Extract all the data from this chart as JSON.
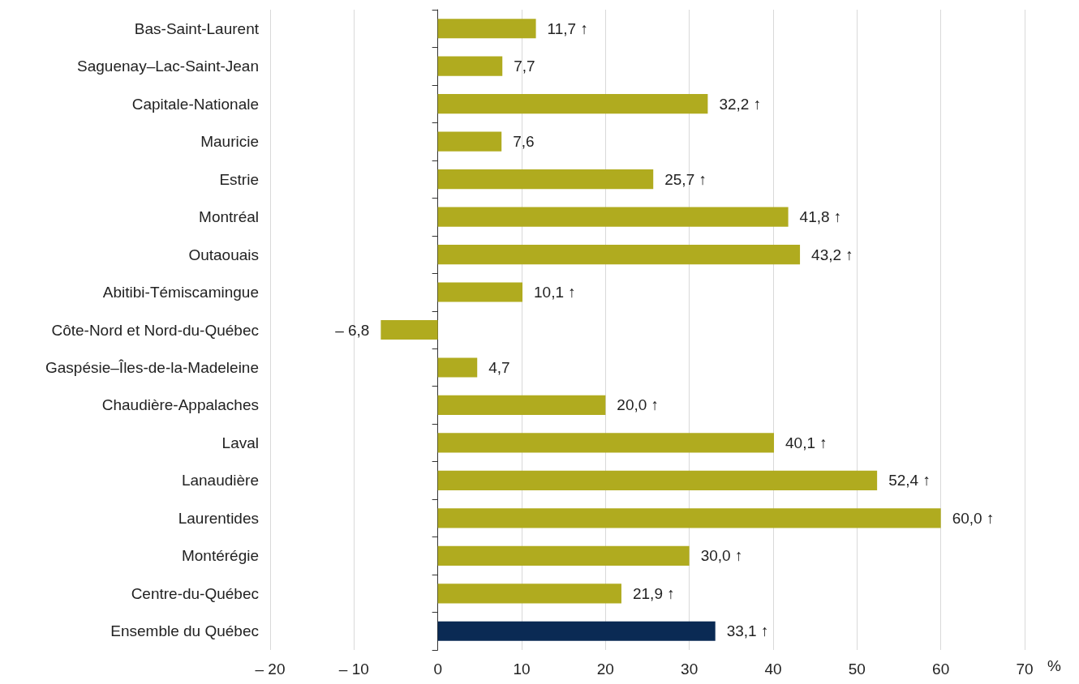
{
  "chart_data": {
    "type": "bar",
    "orientation": "horizontal",
    "xlabel": "%",
    "categories": [
      "Bas-Saint-Laurent",
      "Saguenay–Lac-Saint-Jean",
      "Capitale-Nationale",
      "Mauricie",
      "Estrie",
      "Montréal",
      "Outaouais",
      "Abitibi-Témiscamingue",
      "Côte-Nord et Nord-du-Québec",
      "Gaspésie–Îles-de-la-Madeleine",
      "Chaudière-Appalaches",
      "Laval",
      "Lanaudière",
      "Laurentides",
      "Montérégie",
      "Centre-du-Québec",
      "Ensemble du Québec"
    ],
    "values": [
      11.7,
      7.7,
      32.2,
      7.6,
      25.7,
      41.8,
      43.2,
      10.1,
      -6.8,
      4.7,
      20.0,
      40.1,
      52.4,
      60.0,
      30.0,
      21.9,
      33.1
    ],
    "value_labels": [
      "11,7 ↑",
      "7,7",
      "32,2 ↑",
      "7,6",
      "25,7 ↑",
      "41,8 ↑",
      "43,2 ↑",
      "10,1 ↑",
      "– 6,8",
      "4,7",
      "20,0 ↑",
      "40,1 ↑",
      "52,4 ↑",
      "60,0 ↑",
      "30,0 ↑",
      "21,9 ↑",
      "33,1 ↑"
    ],
    "colors": [
      "#b0ab1f",
      "#b0ab1f",
      "#b0ab1f",
      "#b0ab1f",
      "#b0ab1f",
      "#b0ab1f",
      "#b0ab1f",
      "#b0ab1f",
      "#b0ab1f",
      "#b0ab1f",
      "#b0ab1f",
      "#b0ab1f",
      "#b0ab1f",
      "#b0ab1f",
      "#b0ab1f",
      "#b0ab1f",
      "#0a2a54"
    ],
    "xlim": [
      -20,
      70
    ],
    "xticks": [
      {
        "value": -20,
        "label": "– 20"
      },
      {
        "value": -10,
        "label": "– 10"
      },
      0,
      10,
      20,
      30,
      40,
      50,
      60,
      70
    ],
    "grid": "x"
  }
}
